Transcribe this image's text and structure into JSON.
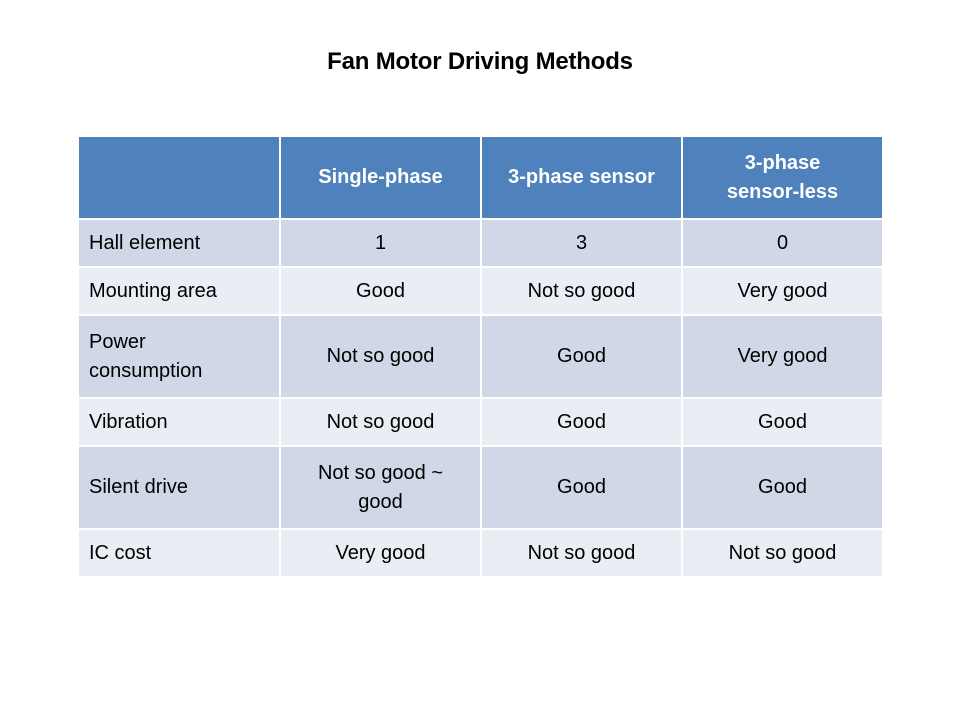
{
  "title": "Fan Motor Driving Methods",
  "table": {
    "headers": [
      "",
      "Single-phase",
      "3-phase sensor",
      "3-phase sensor-less"
    ],
    "rows": [
      {
        "label": "Hall element",
        "cells": [
          "1",
          "3",
          "0"
        ]
      },
      {
        "label": "Mounting area",
        "cells": [
          "Good",
          "Not so good",
          "Very good"
        ]
      },
      {
        "label": "Power consumption",
        "cells": [
          "Not so good",
          "Good",
          "Very good"
        ]
      },
      {
        "label": "Vibration",
        "cells": [
          "Not so good",
          "Good",
          "Good"
        ]
      },
      {
        "label": "Silent drive",
        "cells": [
          "Not so good ~ good",
          "Good",
          "Good"
        ]
      },
      {
        "label": "IC cost",
        "cells": [
          "Very good",
          "Not so good",
          "Not so good"
        ]
      }
    ]
  },
  "colors": {
    "header_bg": "#4f81bd",
    "row_dark": "#d0d8e8",
    "row_light": "#e9edf4"
  }
}
